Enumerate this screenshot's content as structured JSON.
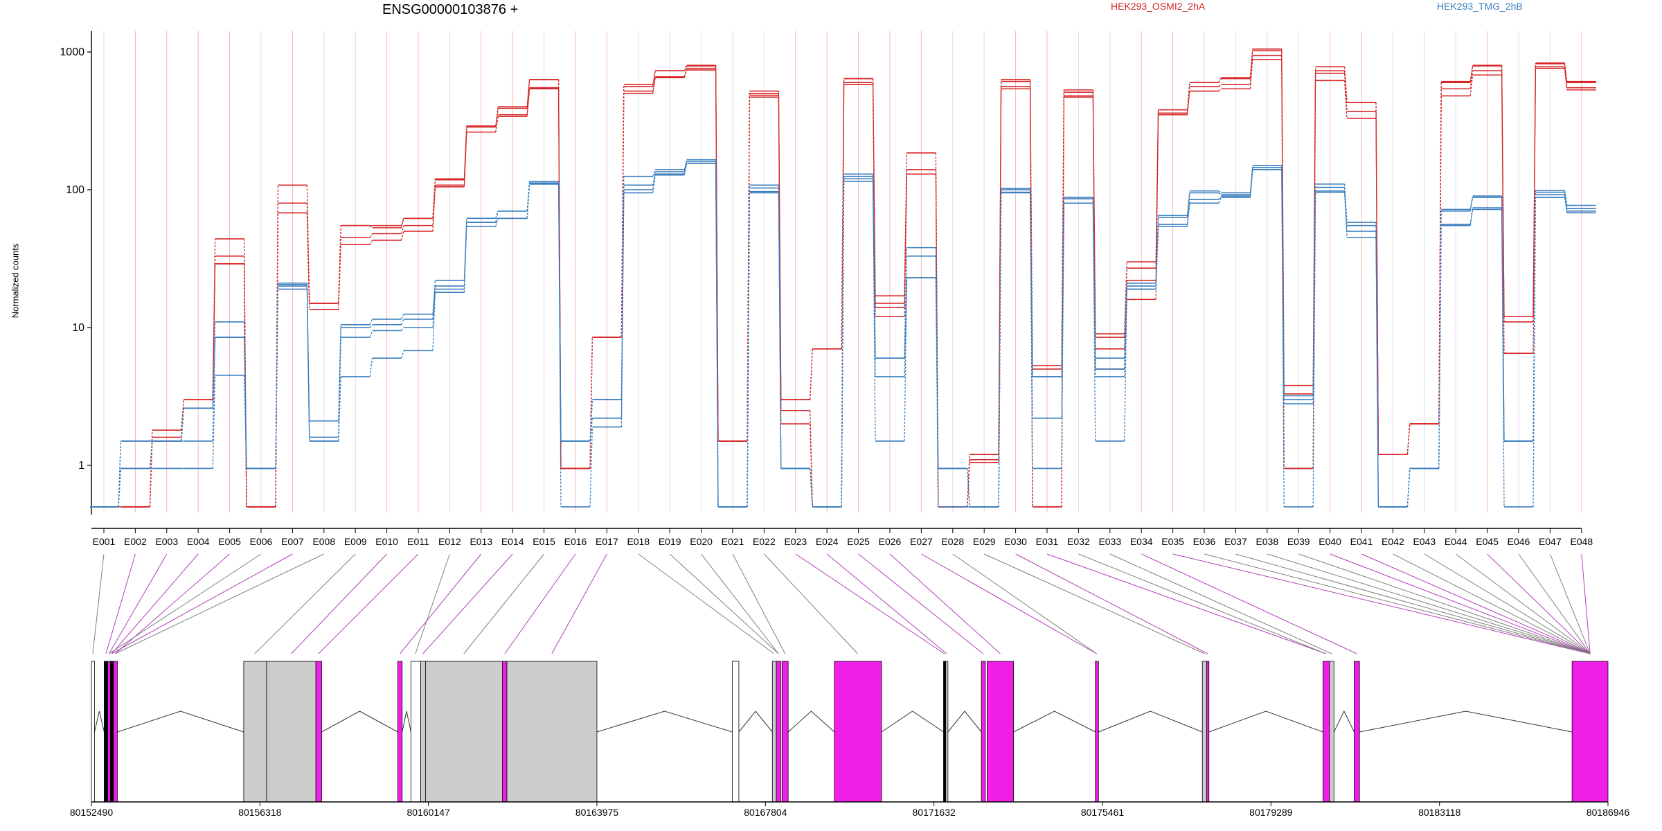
{
  "title": "ENSG00000103876 +",
  "legend": [
    {
      "label": "HEK293_OSMI2_2hA",
      "color": "#d62728"
    },
    {
      "label": "HEK293_TMG_2hB",
      "color": "#3a7ebf"
    }
  ],
  "ylabel": "Normalized counts",
  "colors": {
    "osmi": "#d62728",
    "tmg": "#3a7ebf",
    "exon_highlight": "#f01fe8",
    "exon_gray": "#cccccc",
    "connector_gray": "#7f7f7f",
    "connector_magenta": "#b040b8"
  },
  "chart_data": {
    "type": "line",
    "scale": "log",
    "yticks": [
      1,
      10,
      100,
      1000
    ],
    "yticklabels": [
      "1",
      "10",
      "100",
      "1000"
    ],
    "ylim": [
      0.5,
      1300
    ],
    "xticklabels": [
      "E001",
      "E002",
      "E003",
      "E004",
      "E005",
      "E006",
      "E007",
      "E008",
      "E009",
      "E010",
      "E011",
      "E012",
      "E013",
      "E014",
      "E015",
      "E016",
      "E017",
      "E018",
      "E019",
      "E020",
      "E021",
      "E022",
      "E023",
      "E024",
      "E025",
      "E026",
      "E027",
      "E028",
      "E029",
      "E030",
      "E031",
      "E032",
      "E033",
      "E034",
      "E035",
      "E036",
      "E037",
      "E038",
      "E039",
      "E040",
      "E041",
      "E042",
      "E043",
      "E044",
      "E045",
      "E046",
      "E047",
      "E048"
    ],
    "significant_exons": [
      "E002",
      "E003",
      "E004",
      "E005",
      "E007",
      "E010",
      "E011",
      "E013",
      "E014",
      "E016",
      "E017",
      "E023",
      "E024",
      "E025",
      "E026",
      "E027",
      "E030",
      "E031",
      "E034",
      "E035",
      "E040",
      "E041",
      "E045",
      "E048"
    ],
    "series": [
      {
        "name": "HEK293_OSMI2_2hA",
        "color": "#d62728",
        "replicates": [
          [
            0.5,
            0.5,
            1.6,
            3.0,
            44,
            0.5,
            108,
            15,
            55,
            55,
            62,
            120,
            290,
            400,
            630,
            0.95,
            8.5,
            580,
            730,
            800,
            1.5,
            520,
            3.0,
            7.0,
            640,
            17,
            185,
            0.5,
            1.2,
            630,
            5.3,
            530,
            9.0,
            30,
            380,
            600,
            650,
            1050,
            3.8,
            780,
            430,
            1.2,
            2.0,
            610,
            800,
            12,
            830,
            610
          ],
          [
            0.5,
            0.5,
            1.8,
            3.0,
            33,
            0.5,
            80,
            15,
            55,
            53,
            62,
            118,
            285,
            390,
            630,
            0.95,
            8.5,
            560,
            730,
            790,
            1.5,
            500,
            3.0,
            7.0,
            640,
            15,
            140,
            0.5,
            1.2,
            610,
            0.5,
            510,
            8.5,
            27,
            380,
            600,
            640,
            1020,
            3.3,
            730,
            430,
            1.2,
            2.0,
            600,
            790,
            12,
            820,
            600
          ],
          [
            0.5,
            0.5,
            1.5,
            2.6,
            29,
            0.5,
            68,
            15,
            45,
            48,
            55,
            108,
            262,
            350,
            550,
            0.95,
            8.5,
            520,
            660,
            760,
            1.5,
            485,
            2.5,
            0.5,
            600,
            14,
            130,
            0.5,
            1.1,
            560,
            5.0,
            480,
            7.0,
            22,
            360,
            560,
            580,
            940,
            0.95,
            700,
            370,
            1.2,
            2.0,
            540,
            730,
            11,
            780,
            550
          ],
          [
            0.5,
            0.5,
            1.5,
            2.6,
            29,
            0.5,
            68,
            13.5,
            40,
            43,
            50,
            105,
            262,
            340,
            540,
            0.95,
            8.5,
            500,
            650,
            740,
            1.5,
            470,
            2.0,
            0.5,
            580,
            12,
            130,
            0.5,
            1.05,
            540,
            0.5,
            470,
            5.0,
            16,
            350,
            520,
            540,
            880,
            0.95,
            620,
            330,
            1.2,
            2.0,
            480,
            680,
            6.5,
            760,
            530
          ]
        ]
      },
      {
        "name": "HEK293_TMG_2hB",
        "color": "#3a7ebf",
        "replicates": [
          [
            0.5,
            1.5,
            1.5,
            2.6,
            11,
            0.95,
            21,
            2.1,
            10.5,
            11.5,
            12.5,
            22,
            62,
            70,
            115,
            1.5,
            3.0,
            125,
            140,
            165,
            0.5,
            108,
            0.95,
            0.5,
            130,
            6.0,
            38,
            0.95,
            0.5,
            102,
            4.4,
            88,
            6.0,
            21,
            65,
            98,
            95,
            150,
            3.2,
            110,
            58,
            0.5,
            0.95,
            72,
            90,
            1.5,
            99,
            77
          ],
          [
            0.5,
            1.5,
            1.5,
            2.6,
            8.5,
            0.95,
            20.5,
            1.6,
            10.0,
            10.5,
            11.5,
            20,
            58,
            70,
            112,
            1.5,
            3.0,
            108,
            135,
            160,
            0.5,
            103,
            0.95,
            0.5,
            125,
            6.0,
            33,
            0.95,
            0.5,
            100,
            4.4,
            86,
            5.0,
            20,
            63,
            95,
            92,
            145,
            3.0,
            104,
            55,
            0.5,
            0.95,
            70,
            88,
            1.5,
            96,
            73
          ],
          [
            0.5,
            0.95,
            1.5,
            1.5,
            8.5,
            0.95,
            20,
            1.5,
            8.5,
            9.5,
            10,
            19,
            58,
            62,
            110,
            1.5,
            2.2,
            100,
            130,
            155,
            0.5,
            97,
            0.95,
            0.5,
            120,
            4.4,
            23,
            0.95,
            0.5,
            96,
            2.2,
            80,
            4.4,
            19,
            56,
            85,
            90,
            140,
            2.8,
            98,
            50,
            0.5,
            0.95,
            56,
            74,
            1.5,
            92,
            70
          ],
          [
            0.5,
            0.95,
            0.95,
            0.95,
            4.5,
            0.95,
            19,
            1.5,
            4.4,
            6.0,
            6.8,
            18,
            54,
            62,
            110,
            0.5,
            1.9,
            95,
            128,
            155,
            0.5,
            95,
            0.95,
            0.5,
            115,
            1.5,
            23,
            0.5,
            0.5,
            95,
            0.95,
            80,
            1.5,
            19,
            54,
            80,
            88,
            140,
            0.5,
            96,
            45,
            0.5,
            0.95,
            55,
            72,
            0.5,
            88,
            68
          ]
        ]
      }
    ]
  },
  "gene_model": {
    "coord_labels": [
      "80152490",
      "80156318",
      "80160147",
      "80163975",
      "80167804",
      "80171632",
      "80175461",
      "80179289",
      "80183118",
      "80186946"
    ],
    "range": [
      80152490,
      80186946
    ],
    "exons": [
      {
        "start": 80152490,
        "end": 80152560,
        "fill": "white"
      },
      {
        "start": 80152780,
        "end": 80152860,
        "fill": "black"
      },
      {
        "start": 80152860,
        "end": 80152920,
        "fill": "magenta"
      },
      {
        "start": 80152920,
        "end": 80152990,
        "fill": "black"
      },
      {
        "start": 80152990,
        "end": 80153080,
        "fill": "magenta"
      },
      {
        "start": 80155950,
        "end": 80156470,
        "fill": "gray"
      },
      {
        "start": 80156470,
        "end": 80157590,
        "fill": "gray"
      },
      {
        "start": 80157590,
        "end": 80157720,
        "fill": "magenta"
      },
      {
        "start": 80159450,
        "end": 80159550,
        "fill": "magenta"
      },
      {
        "start": 80159750,
        "end": 80159970,
        "fill": "white"
      },
      {
        "start": 80159970,
        "end": 80160080,
        "fill": "gray"
      },
      {
        "start": 80160080,
        "end": 80161830,
        "fill": "gray"
      },
      {
        "start": 80161830,
        "end": 80161930,
        "fill": "magenta"
      },
      {
        "start": 80161930,
        "end": 80163975,
        "fill": "gray"
      },
      {
        "start": 80167050,
        "end": 80167200,
        "fill": "white"
      },
      {
        "start": 80167960,
        "end": 80168050,
        "fill": "gray"
      },
      {
        "start": 80168050,
        "end": 80168150,
        "fill": "magenta"
      },
      {
        "start": 80168180,
        "end": 80168320,
        "fill": "magenta"
      },
      {
        "start": 80169370,
        "end": 80170440,
        "fill": "magenta"
      },
      {
        "start": 80171850,
        "end": 80171900,
        "fill": "black"
      },
      {
        "start": 80171900,
        "end": 80171950,
        "fill": "gray"
      },
      {
        "start": 80172710,
        "end": 80172800,
        "fill": "magenta"
      },
      {
        "start": 80172840,
        "end": 80173440,
        "fill": "magenta"
      },
      {
        "start": 80175300,
        "end": 80175370,
        "fill": "magenta"
      },
      {
        "start": 80177730,
        "end": 80177830,
        "fill": "gray"
      },
      {
        "start": 80177830,
        "end": 80177880,
        "fill": "magenta"
      },
      {
        "start": 80180470,
        "end": 80180620,
        "fill": "magenta"
      },
      {
        "start": 80180620,
        "end": 80180720,
        "fill": "gray"
      },
      {
        "start": 80181180,
        "end": 80181300,
        "fill": "magenta"
      },
      {
        "start": 80186130,
        "end": 80186946,
        "fill": "magenta"
      }
    ],
    "exon_anchor_coords": [
      80152520,
      80152820,
      80152890,
      80152950,
      80153030,
      80156200,
      80157030,
      80157650,
      80159500,
      80159850,
      80160020,
      80160950,
      80161880,
      80162950,
      80167120,
      80168000,
      80168100,
      80168250,
      80169900,
      80171870,
      80171920,
      80172750,
      80173140,
      80175330,
      80177780,
      80177850,
      80180540,
      80180670,
      80181240,
      80186540
    ],
    "connections": [
      0,
      1,
      2,
      3,
      4,
      2,
      3,
      4,
      5,
      6,
      7,
      9,
      8,
      10,
      11,
      12,
      13,
      15,
      16,
      16,
      17,
      18,
      19,
      20,
      21,
      22,
      23,
      23,
      24,
      25,
      26,
      26,
      27,
      28,
      29,
      29
    ]
  }
}
